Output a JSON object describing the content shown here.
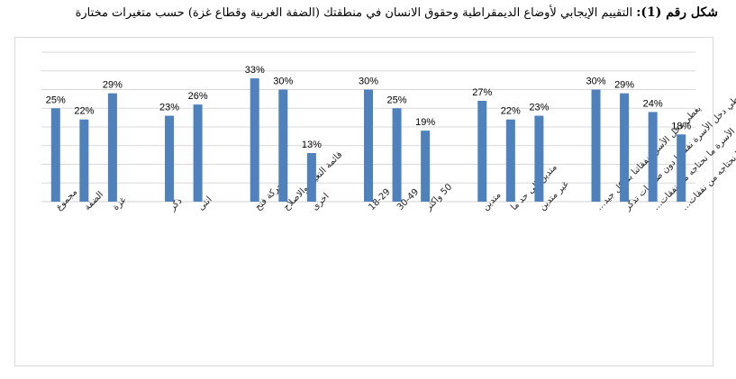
{
  "title": {
    "prefix": "شكل رقم (1):",
    "main": "التقييم الإيجابي لأوضاع الديمقراطية وحقوق الانسان في منطقتك (الضفة الغربية وقطاع غزة) حسب متغيرات مختارة"
  },
  "colors": {
    "bar": "#4f81bd",
    "grid": "#d9d9d9"
  },
  "chart_data": {
    "type": "bar",
    "ylim": [
      0,
      40
    ],
    "grid": true,
    "categories": [
      "مجموع",
      "الضفة",
      "غزة",
      "ذكر",
      "انثى",
      "حركة فتح",
      "قائمة التغيير والاصلاح",
      "اخرى",
      "18-29",
      "30-49",
      "50 واكثر",
      "متدين",
      "متدين الى حد ما",
      "غير متدين",
      "يغطي دخل الأسرة نفقاتنا بشكل جيد…",
      "يغطي دخل الأسرة نفقاتنا دون صعوبات تذكر",
      "لا يغطي دخل الأسرة ما نحتاجه من نفقات…",
      "لا يغطي دخل الأسرة ما نحتاجه من نفقات…"
    ],
    "values": [
      25,
      22,
      29,
      23,
      26,
      33,
      30,
      13,
      30,
      25,
      19,
      27,
      22,
      23,
      30,
      29,
      24,
      18
    ],
    "data_labels": [
      "25%",
      "22%",
      "29%",
      "23%",
      "26%",
      "33%",
      "30%",
      "13%",
      "30%",
      "25%",
      "19%",
      "27%",
      "22%",
      "23%",
      "30%",
      "29%",
      "24%",
      "18%"
    ],
    "groups": [
      3,
      2,
      3,
      3,
      3,
      4
    ]
  }
}
